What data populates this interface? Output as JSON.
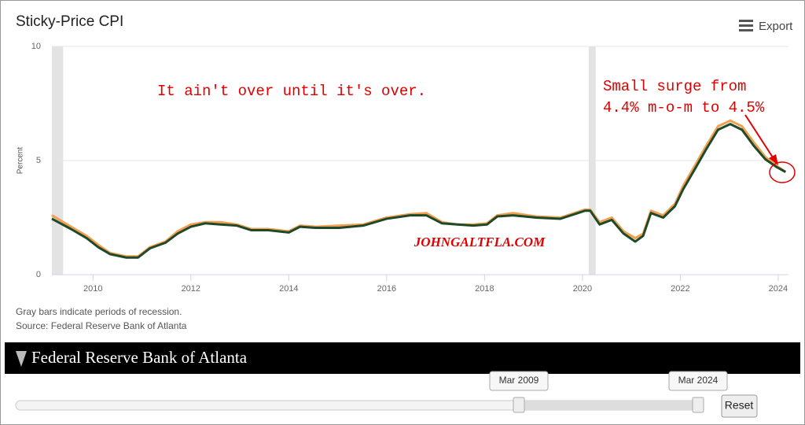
{
  "chart_data": {
    "type": "line",
    "title": "Sticky-Price CPI",
    "y_label": "Percent",
    "x": [
      2009.16,
      2009.55,
      2009.87,
      2010.11,
      2010.35,
      2010.68,
      2010.92,
      2011.16,
      2011.48,
      2011.73,
      2012.0,
      2012.29,
      2012.61,
      2012.94,
      2013.23,
      2013.58,
      2014.0,
      2014.23,
      2014.55,
      2015.03,
      2015.52,
      2016.0,
      2016.48,
      2016.81,
      2017.13,
      2017.45,
      2017.77,
      2018.05,
      2018.26,
      2018.58,
      2019.06,
      2019.55,
      2020.05,
      2020.16,
      2020.35,
      2020.6,
      2020.84,
      2021.08,
      2021.24,
      2021.4,
      2021.65,
      2021.89,
      2022.06,
      2022.29,
      2022.53,
      2022.77,
      2023.02,
      2023.26,
      2023.5,
      2023.74,
      2023.98,
      2024.15
    ],
    "series": [
      {
        "color": "#f0a050",
        "values": [
          2.6,
          2.1,
          1.7,
          1.3,
          0.95,
          0.8,
          0.8,
          1.2,
          1.45,
          1.9,
          2.2,
          2.3,
          2.3,
          2.2,
          2.0,
          2.0,
          1.9,
          2.15,
          2.1,
          2.15,
          2.2,
          2.5,
          2.65,
          2.7,
          2.3,
          2.2,
          2.2,
          2.25,
          2.6,
          2.7,
          2.55,
          2.5,
          2.85,
          2.85,
          2.3,
          2.5,
          1.9,
          1.6,
          1.8,
          2.8,
          2.6,
          3.1,
          3.9,
          4.75,
          5.65,
          6.5,
          6.75,
          6.5,
          5.8,
          5.15,
          4.75,
          4.5
        ]
      },
      {
        "color": "#1e4a2a",
        "values": [
          2.45,
          2.0,
          1.6,
          1.2,
          0.9,
          0.75,
          0.75,
          1.15,
          1.4,
          1.8,
          2.1,
          2.25,
          2.2,
          2.15,
          1.95,
          1.95,
          1.85,
          2.1,
          2.05,
          2.05,
          2.15,
          2.45,
          2.6,
          2.6,
          2.25,
          2.2,
          2.15,
          2.2,
          2.55,
          2.6,
          2.5,
          2.45,
          2.8,
          2.8,
          2.2,
          2.4,
          1.8,
          1.45,
          1.7,
          2.7,
          2.5,
          3.0,
          3.75,
          4.6,
          5.5,
          6.35,
          6.6,
          6.35,
          5.65,
          5.05,
          4.7,
          4.5
        ]
      }
    ],
    "recessions": [
      [
        2009.16,
        2009.39
      ],
      [
        2020.13,
        2020.27
      ]
    ],
    "recession_color": "#e3e3e3",
    "xlim": [
      2009.16,
      2024.21
    ],
    "xticks": [
      2010,
      2012,
      2014,
      2016,
      2018,
      2020,
      2022,
      2024
    ],
    "ylim": [
      0,
      10
    ],
    "yticks": [
      0,
      5,
      10
    ],
    "grid": true,
    "annotations": [
      "It ain't over until it's over.",
      "Small surge from",
      "4.4% m-o-m to 4.5%",
      "JOHNGALTFLA.COM"
    ]
  },
  "ui": {
    "export": "Export",
    "notes": [
      "Gray bars indicate periods of recession.",
      "Source: Federal Reserve Bank of Atlanta"
    ],
    "banner": "Federal Reserve Bank of Atlanta",
    "range_start": "Mar 2009",
    "range_end": "Mar 2024",
    "reset": "Reset"
  }
}
